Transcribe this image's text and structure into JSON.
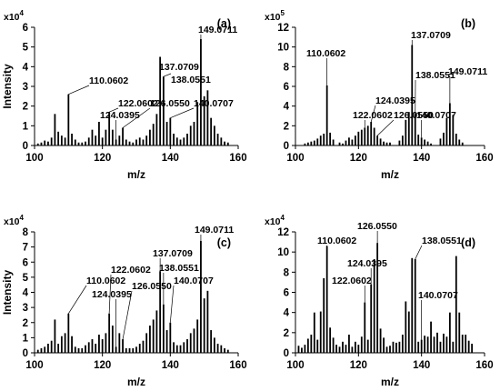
{
  "chart_data": [
    {
      "panel": "(a)",
      "type": "bar",
      "multiplier": "x10",
      "multiplier_exp": "4",
      "xlabel": "m/z",
      "ylabel": "Intensity",
      "xlim": [
        100,
        160
      ],
      "ylim": [
        0,
        6
      ],
      "xticks": [
        "100",
        "120",
        "140",
        "160"
      ],
      "yticks": [
        "0",
        "1",
        "2",
        "3",
        "4",
        "5",
        "6"
      ],
      "peaks": {
        "x": [
          101,
          102,
          103,
          104,
          105,
          106,
          107,
          108,
          109,
          110,
          111,
          112,
          113,
          114,
          115,
          116,
          117,
          118,
          119,
          120,
          121,
          122,
          123,
          124,
          125,
          126,
          127,
          128,
          129,
          130,
          131,
          132,
          133,
          134,
          135,
          136,
          137,
          138,
          139,
          140,
          141,
          142,
          143,
          144,
          145,
          146,
          147,
          148,
          149,
          150,
          151,
          152,
          153,
          154,
          155,
          156,
          157
        ],
        "y": [
          0.1,
          0.15,
          0.25,
          0.2,
          0.4,
          1.6,
          0.7,
          0.5,
          0.4,
          2.6,
          0.6,
          0.3,
          0.15,
          0.15,
          0.2,
          0.4,
          0.8,
          0.5,
          1.2,
          0.4,
          0.8,
          1.7,
          0.8,
          0.3,
          0.5,
          0.9,
          0.3,
          0.2,
          0.15,
          0.3,
          0.4,
          0.3,
          0.5,
          0.8,
          1.1,
          1.6,
          4.5,
          3.5,
          1.2,
          1.4,
          0.6,
          0.4,
          0.3,
          0.4,
          0.6,
          1.0,
          1.2,
          2.2,
          5.4,
          2.5,
          2.8,
          1.4,
          1.0,
          0.6,
          0.4,
          0.2,
          0.15
        ]
      },
      "annotations": [
        {
          "label": "110.0602",
          "x": 110,
          "y": 2.6
        },
        {
          "label": "124.0395",
          "x": 124,
          "y": 0.3
        },
        {
          "label": "122.0602",
          "x": 122,
          "y": 1.7
        },
        {
          "label": "126.0550",
          "x": 126,
          "y": 0.9
        },
        {
          "label": "137.0709",
          "x": 137,
          "y": 4.5
        },
        {
          "label": "138.0551",
          "x": 138,
          "y": 3.5
        },
        {
          "label": "140.0707",
          "x": 140,
          "y": 1.4
        },
        {
          "label": "149.0711",
          "x": 149,
          "y": 5.4
        }
      ]
    },
    {
      "panel": "(b)",
      "type": "bar",
      "multiplier": "x10",
      "multiplier_exp": "5",
      "xlabel": "m/z",
      "ylabel": "",
      "xlim": [
        100,
        160
      ],
      "ylim": [
        0,
        12
      ],
      "xticks": [
        "100",
        "120",
        "140",
        "160"
      ],
      "yticks": [
        "0",
        "2",
        "4",
        "6",
        "8",
        "10",
        "12"
      ],
      "peaks": {
        "x": [
          103,
          104,
          105,
          106,
          107,
          108,
          109,
          110,
          111,
          112,
          114,
          115,
          116,
          117,
          118,
          119,
          120,
          121,
          122,
          123,
          124,
          125,
          126,
          127,
          128,
          129,
          130,
          133,
          134,
          135,
          136,
          137,
          138,
          139,
          140,
          141,
          142,
          143,
          146,
          147,
          148,
          149,
          150,
          151,
          152,
          153
        ],
        "y": [
          0.2,
          0.3,
          0.4,
          0.5,
          0.7,
          1.0,
          1.2,
          6.1,
          1.3,
          0.6,
          0.3,
          0.2,
          0.5,
          0.8,
          0.6,
          1.0,
          1.4,
          1.6,
          1.8,
          2.0,
          2.4,
          1.8,
          1.0,
          0.7,
          0.4,
          0.3,
          0.3,
          0.5,
          1.0,
          2.6,
          3.4,
          10.2,
          3.2,
          1.1,
          0.8,
          0.6,
          0.4,
          0.2,
          0.7,
          1.3,
          2.8,
          4.3,
          3.1,
          1.2,
          0.6,
          0.3
        ]
      },
      "annotations": [
        {
          "label": "110.0602",
          "x": 110,
          "y": 6.1
        },
        {
          "label": "124.0395",
          "x": 124,
          "y": 2.4
        },
        {
          "label": "122.0602",
          "x": 122,
          "y": 1.8
        },
        {
          "label": "126.0550",
          "x": 126,
          "y": 1.0
        },
        {
          "label": "137.0709",
          "x": 137,
          "y": 10.2
        },
        {
          "label": "138.0551",
          "x": 138,
          "y": 3.2
        },
        {
          "label": "140.0707",
          "x": 140,
          "y": 0.8
        },
        {
          "label": "149.0711",
          "x": 149,
          "y": 4.3
        }
      ]
    },
    {
      "panel": "(c)",
      "type": "bar",
      "multiplier": "x10",
      "multiplier_exp": "4",
      "xlabel": "m/z",
      "ylabel": "Intensity",
      "xlim": [
        100,
        160
      ],
      "ylim": [
        0,
        8
      ],
      "xticks": [
        "100",
        "120",
        "140",
        "160"
      ],
      "yticks": [
        "0",
        "1",
        "2",
        "3",
        "4",
        "5",
        "6",
        "7",
        "8"
      ],
      "peaks": {
        "x": [
          101,
          102,
          103,
          104,
          105,
          106,
          107,
          108,
          109,
          110,
          111,
          112,
          113,
          114,
          115,
          116,
          117,
          118,
          119,
          120,
          121,
          122,
          123,
          124,
          125,
          126,
          127,
          128,
          129,
          130,
          131,
          132,
          133,
          134,
          135,
          136,
          137,
          138,
          139,
          140,
          141,
          142,
          143,
          144,
          145,
          146,
          147,
          148,
          149,
          150,
          151,
          152,
          153,
          154,
          155,
          156,
          157
        ],
        "y": [
          0.2,
          0.3,
          0.4,
          0.6,
          0.8,
          2.2,
          0.6,
          1.1,
          1.3,
          2.6,
          1.1,
          0.4,
          0.3,
          0.3,
          0.5,
          0.7,
          0.9,
          0.6,
          1.2,
          0.9,
          1.3,
          2.6,
          1.8,
          0.4,
          1.3,
          0.9,
          0.3,
          0.3,
          0.3,
          0.4,
          0.6,
          0.8,
          1.3,
          1.8,
          2.2,
          2.8,
          5.4,
          3.2,
          1.5,
          2.0,
          0.7,
          0.5,
          0.5,
          0.7,
          0.9,
          1.3,
          1.6,
          2.2,
          7.4,
          3.6,
          4.1,
          1.5,
          1.0,
          0.6,
          0.5,
          0.3,
          0.2
        ]
      },
      "annotations": [
        {
          "label": "110.0602",
          "x": 110,
          "y": 2.6
        },
        {
          "label": "124.0395",
          "x": 124,
          "y": 0.4
        },
        {
          "label": "122.0602",
          "x": 122,
          "y": 2.6
        },
        {
          "label": "126.0550",
          "x": 126,
          "y": 0.9
        },
        {
          "label": "137.0709",
          "x": 137,
          "y": 5.4
        },
        {
          "label": "138.0551",
          "x": 138,
          "y": 3.2
        },
        {
          "label": "140.0707",
          "x": 140,
          "y": 2.0
        },
        {
          "label": "149.0711",
          "x": 149,
          "y": 7.4
        }
      ]
    },
    {
      "panel": "(d)",
      "type": "bar",
      "multiplier": "x10",
      "multiplier_exp": "4",
      "xlabel": "m/z",
      "ylabel": "",
      "xlim": [
        100,
        160
      ],
      "ylim": [
        0,
        12
      ],
      "xticks": [
        "100",
        "120",
        "140",
        "160"
      ],
      "yticks": [
        "0",
        "2",
        "4",
        "6",
        "8",
        "10",
        "12"
      ],
      "peaks": {
        "x": [
          101,
          102,
          103,
          104,
          105,
          106,
          107,
          108,
          109,
          110,
          111,
          112,
          113,
          114,
          115,
          116,
          117,
          118,
          119,
          120,
          121,
          122,
          123,
          124,
          125,
          126,
          127,
          128,
          129,
          130,
          131,
          132,
          133,
          134,
          135,
          136,
          137,
          138,
          139,
          140,
          141,
          142,
          143,
          144,
          145,
          146,
          147,
          148,
          149,
          150,
          151,
          152,
          153,
          154,
          155,
          156
        ],
        "y": [
          0.7,
          0.5,
          0.8,
          1.4,
          1.8,
          4.0,
          1.3,
          4.1,
          7.4,
          10.6,
          2.5,
          1.5,
          0.8,
          0.6,
          1.1,
          0.8,
          1.8,
          0.6,
          1.1,
          0.8,
          1.6,
          5.0,
          1.3,
          6.8,
          9.3,
          10.9,
          2.4,
          1.5,
          0.6,
          0.7,
          1.1,
          1.0,
          1.1,
          1.8,
          5.1,
          4.1,
          9.4,
          9.3,
          1.1,
          1.3,
          1.7,
          1.6,
          3.1,
          1.6,
          2.0,
          1.1,
          1.9,
          1.6,
          4.0,
          1.1,
          9.6,
          4.0,
          1.8,
          1.8,
          1.2,
          0.9
        ]
      },
      "annotations": [
        {
          "label": "110.0602",
          "x": 110,
          "y": 10.6
        },
        {
          "label": "124.0395",
          "x": 124,
          "y": 6.8
        },
        {
          "label": "122.0602",
          "x": 122,
          "y": 5.0
        },
        {
          "label": "126.0550",
          "x": 126,
          "y": 10.9
        },
        {
          "label": "138.0551",
          "x": 138,
          "y": 9.3
        },
        {
          "label": "140.0707",
          "x": 140,
          "y": 1.3
        }
      ]
    }
  ]
}
